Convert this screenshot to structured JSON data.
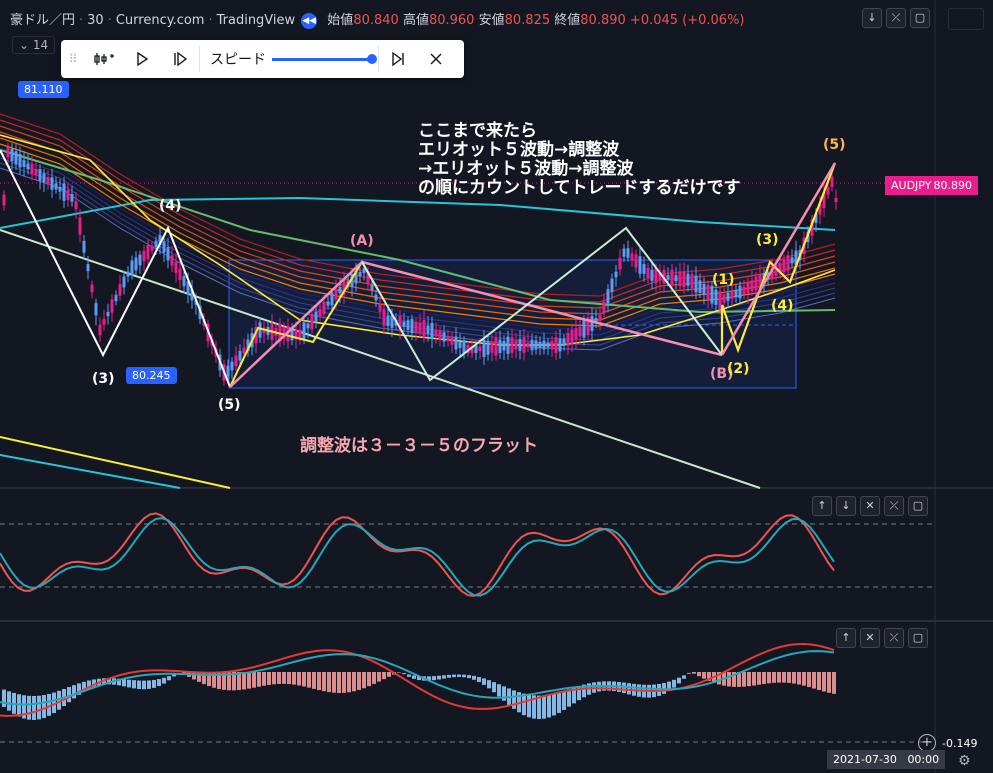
{
  "legend": {
    "symbol": "豪ドル／円",
    "interval": "30",
    "source": "Currency.com",
    "platform": "TradingView",
    "open_label": "始値",
    "open": "80.840",
    "high_label": "高値",
    "high": "80.960",
    "low_label": "安値",
    "low": "80.825",
    "close_label": "終値",
    "close": "80.890",
    "change": "+0.045 (+0.06%)"
  },
  "indicator_badge": "14",
  "replay_bar": {
    "speed_label": "スピード",
    "speed_level": 1.0
  },
  "price_labels": {
    "top": "81.110",
    "mid": "80.245"
  },
  "symbol_tag": {
    "name": "AUDJPY",
    "price": "80.890"
  },
  "wave_labels": {
    "w3": "(3)",
    "w4": "(4)",
    "w5": "(5)",
    "A": "(A)",
    "B": "(B)",
    "y1": "(1)",
    "y2": "(2)",
    "y3": "(3)",
    "y4": "(4)",
    "y5": "(5)"
  },
  "annotation_top": [
    "ここまで来たら",
    "エリオット５波動→調整波",
    "→エリオット５波動→調整波",
    "の順にカウントしてトレードするだけです"
  ],
  "annotation_bottom": "調整波は３－３－５のフラット",
  "macd_scale": "-0.149",
  "crosshair_date": "2021-07-30",
  "crosshair_time": "00:00",
  "colors": {
    "background": "#131722",
    "up": "#e91e8c",
    "down": "#5b9cf6",
    "wave_white": "#ffffff",
    "wave_yellow": "#ffeb3b",
    "wave_pink": "#f48fb1",
    "wave_mint": "#c8f0d8"
  }
}
